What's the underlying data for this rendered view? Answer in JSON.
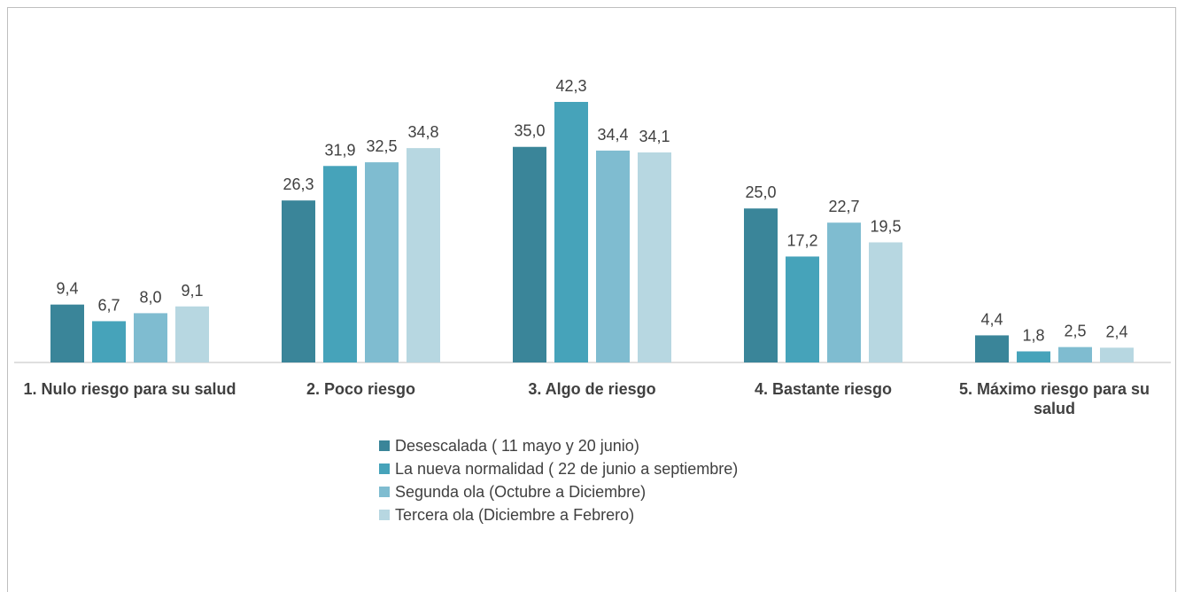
{
  "chart_data": {
    "type": "bar",
    "categories": [
      "1. Nulo riesgo para su salud",
      "2. Poco riesgo",
      "3. Algo de riesgo",
      "4. Bastante riesgo",
      "5. Máximo riesgo para su salud"
    ],
    "series": [
      {
        "name": "Desescalada ( 11 mayo y 20 junio)",
        "color": "#3a8599",
        "values": [
          9.4,
          26.3,
          35.0,
          25.0,
          4.4
        ],
        "value_labels": [
          "9,4",
          "26,3",
          "35,0",
          "25,0",
          "4,4"
        ]
      },
      {
        "name": "La nueva normalidad ( 22 de junio a septiembre)",
        "color": "#46a3ba",
        "values": [
          6.7,
          31.9,
          42.3,
          17.2,
          1.8
        ],
        "value_labels": [
          "6,7",
          "31,9",
          "42,3",
          "17,2",
          "1,8"
        ]
      },
      {
        "name": "Segunda ola (Octubre a Diciembre)",
        "color": "#7fbcd0",
        "values": [
          8.0,
          32.5,
          34.4,
          22.7,
          2.5
        ],
        "value_labels": [
          "8,0",
          "32,5",
          "34,4",
          "22,7",
          "2,5"
        ]
      },
      {
        "name": "Tercera ola (Diciembre a Febrero)",
        "color": "#b7d7e1",
        "values": [
          9.1,
          34.8,
          34.1,
          19.5,
          2.4
        ],
        "value_labels": [
          "9,1",
          "34,8",
          "34,1",
          "19,5",
          "2,4"
        ]
      }
    ],
    "legend": "bottom"
  }
}
